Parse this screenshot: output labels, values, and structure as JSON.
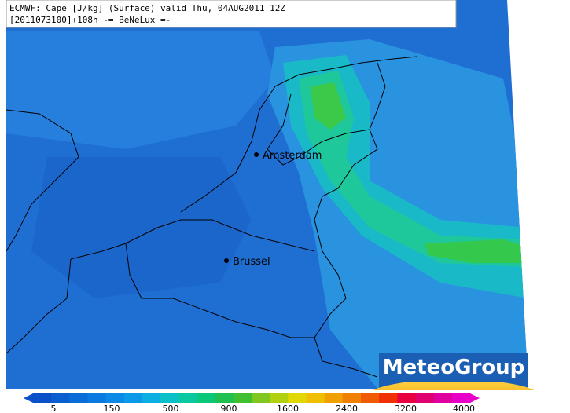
{
  "header": {
    "line1": "ECMWF: Cape [J/kg] (Surface) valid Thu, 04AUG2011 12Z",
    "line2": "[2011073100]+108h -= BeNeLux =-"
  },
  "cities": [
    {
      "name": "Amsterdam"
    },
    {
      "name": "Brussel"
    }
  ],
  "logo": "MeteoGroup",
  "colorbar": {
    "labels": [
      "5",
      "150",
      "500",
      "900",
      "1600",
      "2400",
      "3200",
      "4000"
    ]
  }
}
